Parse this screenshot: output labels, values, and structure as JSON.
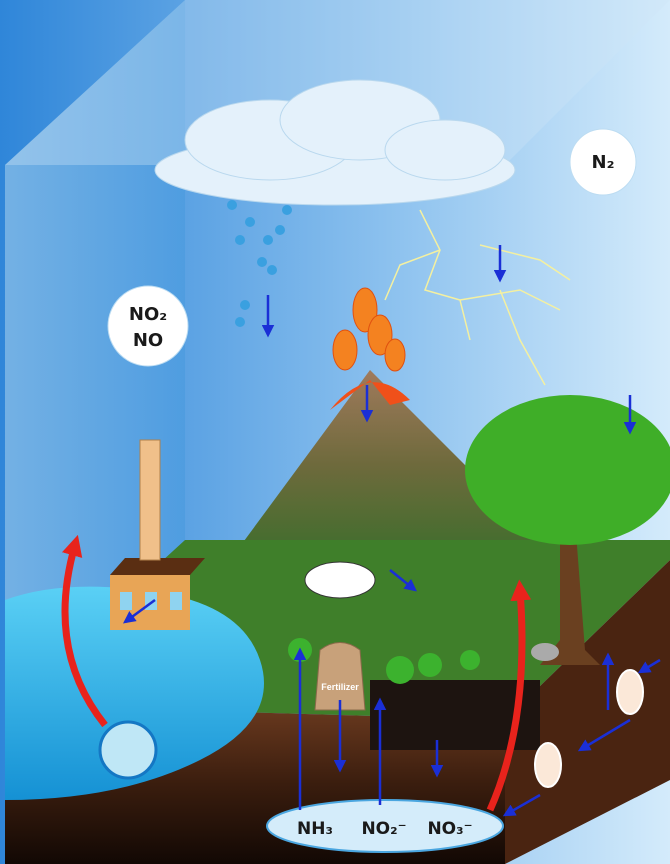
{
  "atmosphere_label": "N₂",
  "emission_labels": [
    "NO₂",
    "NO"
  ],
  "fertilizer_label": "Fertilizer",
  "soil_compounds": [
    "NH₃",
    "NO₂⁻",
    "NO₃⁻"
  ]
}
